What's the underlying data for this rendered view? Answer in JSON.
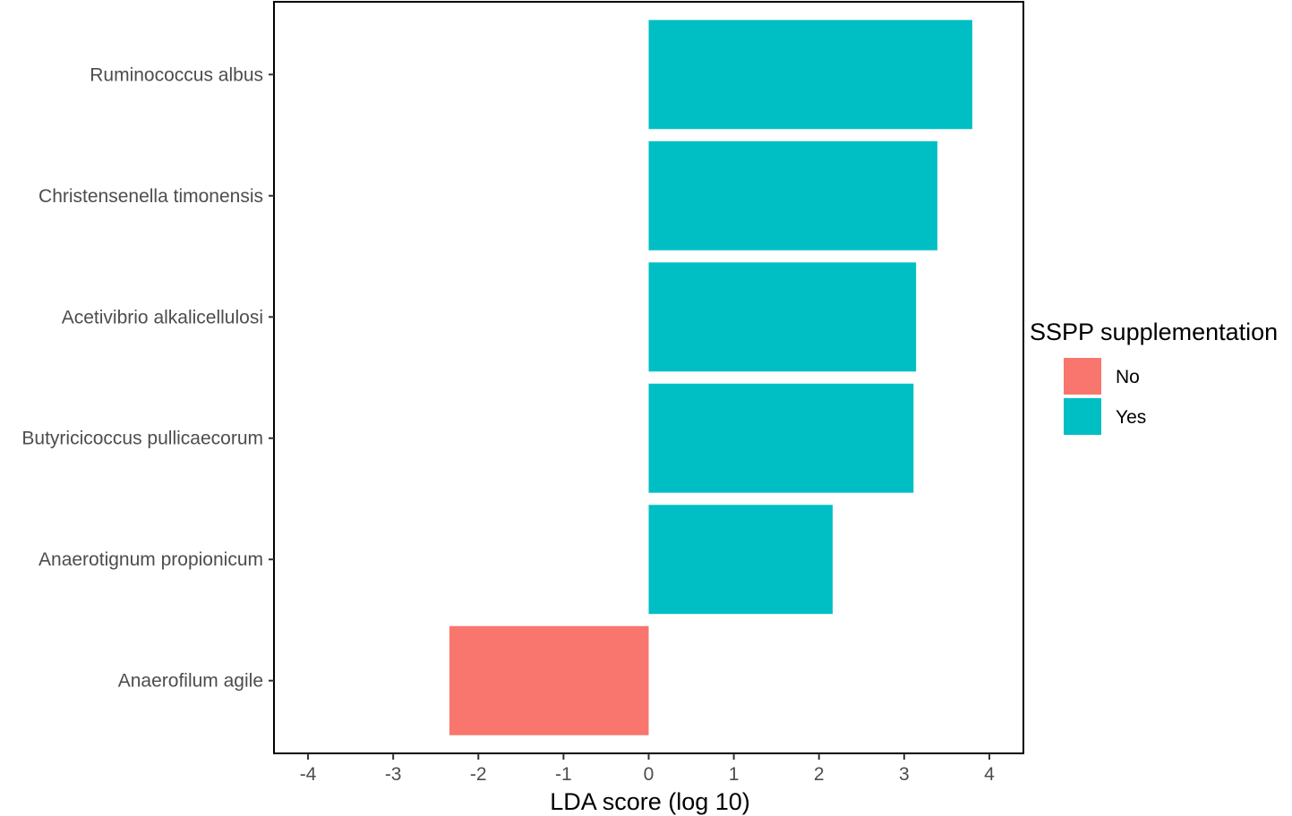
{
  "chart_data": {
    "type": "bar",
    "orientation": "horizontal",
    "categories": [
      "Ruminococcus albus",
      "Christensenella timonensis",
      "Acetivibrio alkalicellulosi",
      "Butyricicoccus pullicaecorum",
      "Anaerotignum propionicum",
      "Anaerofilum agile"
    ],
    "values": [
      3.8,
      3.39,
      3.14,
      3.11,
      2.16,
      -2.34
    ],
    "groups": [
      "Yes",
      "Yes",
      "Yes",
      "Yes",
      "Yes",
      "No"
    ],
    "xlabel": "LDA score (log 10)",
    "ylabel": "",
    "xlim": [
      -4.4,
      4.4
    ],
    "xticks": [
      -4,
      -3,
      -2,
      -1,
      0,
      1,
      2,
      3,
      4
    ],
    "grid": false,
    "legend": {
      "title": "SSPP supplementation",
      "position": "right",
      "entries": [
        {
          "label": "No",
          "color": "#F8766D"
        },
        {
          "label": "Yes",
          "color": "#00BFC4"
        }
      ]
    }
  }
}
